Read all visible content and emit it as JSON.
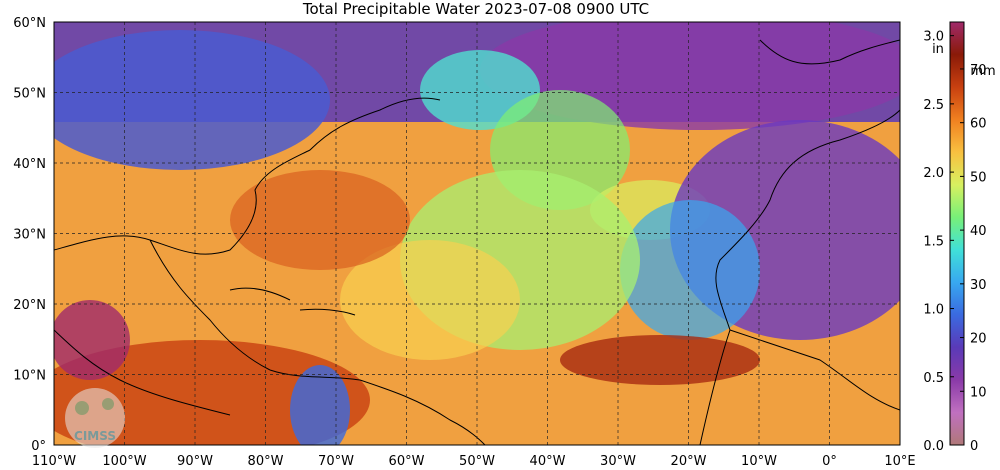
{
  "title": "Total Precipitable Water  2023-07-08 0900 UTC",
  "map": {
    "lon_range": [
      -110,
      10
    ],
    "lat_range": [
      0,
      60
    ],
    "lon_labels": [
      "110°W",
      "100°W",
      "90°W",
      "80°W",
      "70°W",
      "60°W",
      "50°W",
      "40°W",
      "30°W",
      "20°W",
      "10°W",
      "0°",
      "10°E"
    ],
    "lat_labels": [
      "0°",
      "10°N",
      "20°N",
      "30°N",
      "40°N",
      "50°N",
      "60°N"
    ],
    "grid": "dashed"
  },
  "colorbar": {
    "inch_unit": "in",
    "mm_unit": "mm",
    "inch_ticks": [
      "0.0",
      "0.5",
      "1.0",
      "1.5",
      "2.0",
      "2.5",
      "3.0"
    ],
    "mm_ticks": [
      "0",
      "10",
      "20",
      "30",
      "40",
      "50",
      "60",
      "70"
    ],
    "inch_max": 3.1,
    "colors": [
      "#b07878",
      "#c070c0",
      "#8a3aa8",
      "#5a3ab8",
      "#3a6ae0",
      "#38a8f0",
      "#40e0d8",
      "#78f078",
      "#d8f060",
      "#f8c040",
      "#f08020",
      "#c84010",
      "#8a1a08",
      "#a02a6a"
    ]
  },
  "logo": {
    "text": "CIMSS"
  }
}
